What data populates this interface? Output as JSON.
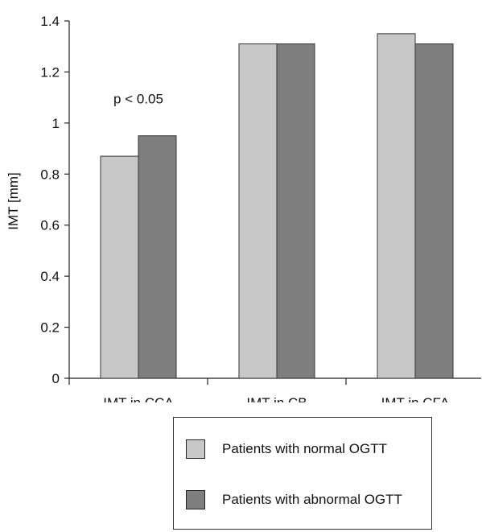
{
  "chart_data": {
    "type": "bar",
    "title": "",
    "xlabel": "",
    "ylabel": "IMT [mm]",
    "ylim": [
      0,
      1.4
    ],
    "yticks": [
      "0",
      "0.2",
      "0.4",
      "0.6",
      "0.8",
      "1",
      "1.2",
      "1.4"
    ],
    "grid": false,
    "categories": [
      "IMT in CCA",
      "IMT in CB",
      "IMT in CFA"
    ],
    "series": [
      {
        "name": "Patients with normal OGTT",
        "color": "#c8c8c8",
        "values": [
          0.87,
          1.31,
          1.35
        ]
      },
      {
        "name": "Patients with abnormal OGTT",
        "color": "#7f7f7f",
        "values": [
          0.95,
          1.31,
          1.31
        ]
      }
    ],
    "annotations": [
      {
        "text": "p < 0.05",
        "category": "IMT in CCA"
      }
    ],
    "legend_position": "bottom"
  }
}
